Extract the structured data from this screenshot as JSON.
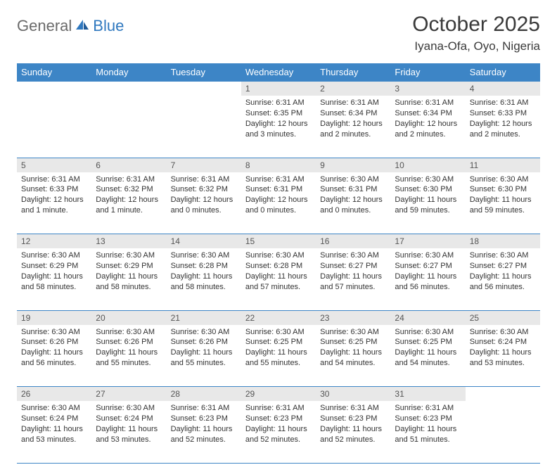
{
  "brand": {
    "part1": "General",
    "part2": "Blue"
  },
  "title": "October 2025",
  "location": "Iyana-Ofa, Oyo, Nigeria",
  "colors": {
    "header_bg": "#3d85c6",
    "header_text": "#ffffff",
    "daynum_bg": "#e8e8e8",
    "rule": "#3d85c6",
    "brand_gray": "#6a6a6a",
    "brand_blue": "#2f78bf"
  },
  "weekdays": [
    "Sunday",
    "Monday",
    "Tuesday",
    "Wednesday",
    "Thursday",
    "Friday",
    "Saturday"
  ],
  "weeks": [
    [
      null,
      null,
      null,
      {
        "n": "1",
        "sr": "6:31 AM",
        "ss": "6:35 PM",
        "dl": "12 hours and 3 minutes."
      },
      {
        "n": "2",
        "sr": "6:31 AM",
        "ss": "6:34 PM",
        "dl": "12 hours and 2 minutes."
      },
      {
        "n": "3",
        "sr": "6:31 AM",
        "ss": "6:34 PM",
        "dl": "12 hours and 2 minutes."
      },
      {
        "n": "4",
        "sr": "6:31 AM",
        "ss": "6:33 PM",
        "dl": "12 hours and 2 minutes."
      }
    ],
    [
      {
        "n": "5",
        "sr": "6:31 AM",
        "ss": "6:33 PM",
        "dl": "12 hours and 1 minute."
      },
      {
        "n": "6",
        "sr": "6:31 AM",
        "ss": "6:32 PM",
        "dl": "12 hours and 1 minute."
      },
      {
        "n": "7",
        "sr": "6:31 AM",
        "ss": "6:32 PM",
        "dl": "12 hours and 0 minutes."
      },
      {
        "n": "8",
        "sr": "6:31 AM",
        "ss": "6:31 PM",
        "dl": "12 hours and 0 minutes."
      },
      {
        "n": "9",
        "sr": "6:30 AM",
        "ss": "6:31 PM",
        "dl": "12 hours and 0 minutes."
      },
      {
        "n": "10",
        "sr": "6:30 AM",
        "ss": "6:30 PM",
        "dl": "11 hours and 59 minutes."
      },
      {
        "n": "11",
        "sr": "6:30 AM",
        "ss": "6:30 PM",
        "dl": "11 hours and 59 minutes."
      }
    ],
    [
      {
        "n": "12",
        "sr": "6:30 AM",
        "ss": "6:29 PM",
        "dl": "11 hours and 58 minutes."
      },
      {
        "n": "13",
        "sr": "6:30 AM",
        "ss": "6:29 PM",
        "dl": "11 hours and 58 minutes."
      },
      {
        "n": "14",
        "sr": "6:30 AM",
        "ss": "6:28 PM",
        "dl": "11 hours and 58 minutes."
      },
      {
        "n": "15",
        "sr": "6:30 AM",
        "ss": "6:28 PM",
        "dl": "11 hours and 57 minutes."
      },
      {
        "n": "16",
        "sr": "6:30 AM",
        "ss": "6:27 PM",
        "dl": "11 hours and 57 minutes."
      },
      {
        "n": "17",
        "sr": "6:30 AM",
        "ss": "6:27 PM",
        "dl": "11 hours and 56 minutes."
      },
      {
        "n": "18",
        "sr": "6:30 AM",
        "ss": "6:27 PM",
        "dl": "11 hours and 56 minutes."
      }
    ],
    [
      {
        "n": "19",
        "sr": "6:30 AM",
        "ss": "6:26 PM",
        "dl": "11 hours and 56 minutes."
      },
      {
        "n": "20",
        "sr": "6:30 AM",
        "ss": "6:26 PM",
        "dl": "11 hours and 55 minutes."
      },
      {
        "n": "21",
        "sr": "6:30 AM",
        "ss": "6:26 PM",
        "dl": "11 hours and 55 minutes."
      },
      {
        "n": "22",
        "sr": "6:30 AM",
        "ss": "6:25 PM",
        "dl": "11 hours and 55 minutes."
      },
      {
        "n": "23",
        "sr": "6:30 AM",
        "ss": "6:25 PM",
        "dl": "11 hours and 54 minutes."
      },
      {
        "n": "24",
        "sr": "6:30 AM",
        "ss": "6:25 PM",
        "dl": "11 hours and 54 minutes."
      },
      {
        "n": "25",
        "sr": "6:30 AM",
        "ss": "6:24 PM",
        "dl": "11 hours and 53 minutes."
      }
    ],
    [
      {
        "n": "26",
        "sr": "6:30 AM",
        "ss": "6:24 PM",
        "dl": "11 hours and 53 minutes."
      },
      {
        "n": "27",
        "sr": "6:30 AM",
        "ss": "6:24 PM",
        "dl": "11 hours and 53 minutes."
      },
      {
        "n": "28",
        "sr": "6:31 AM",
        "ss": "6:23 PM",
        "dl": "11 hours and 52 minutes."
      },
      {
        "n": "29",
        "sr": "6:31 AM",
        "ss": "6:23 PM",
        "dl": "11 hours and 52 minutes."
      },
      {
        "n": "30",
        "sr": "6:31 AM",
        "ss": "6:23 PM",
        "dl": "11 hours and 52 minutes."
      },
      {
        "n": "31",
        "sr": "6:31 AM",
        "ss": "6:23 PM",
        "dl": "11 hours and 51 minutes."
      },
      null
    ]
  ],
  "labels": {
    "sunrise": "Sunrise:",
    "sunset": "Sunset:",
    "daylight": "Daylight:"
  }
}
